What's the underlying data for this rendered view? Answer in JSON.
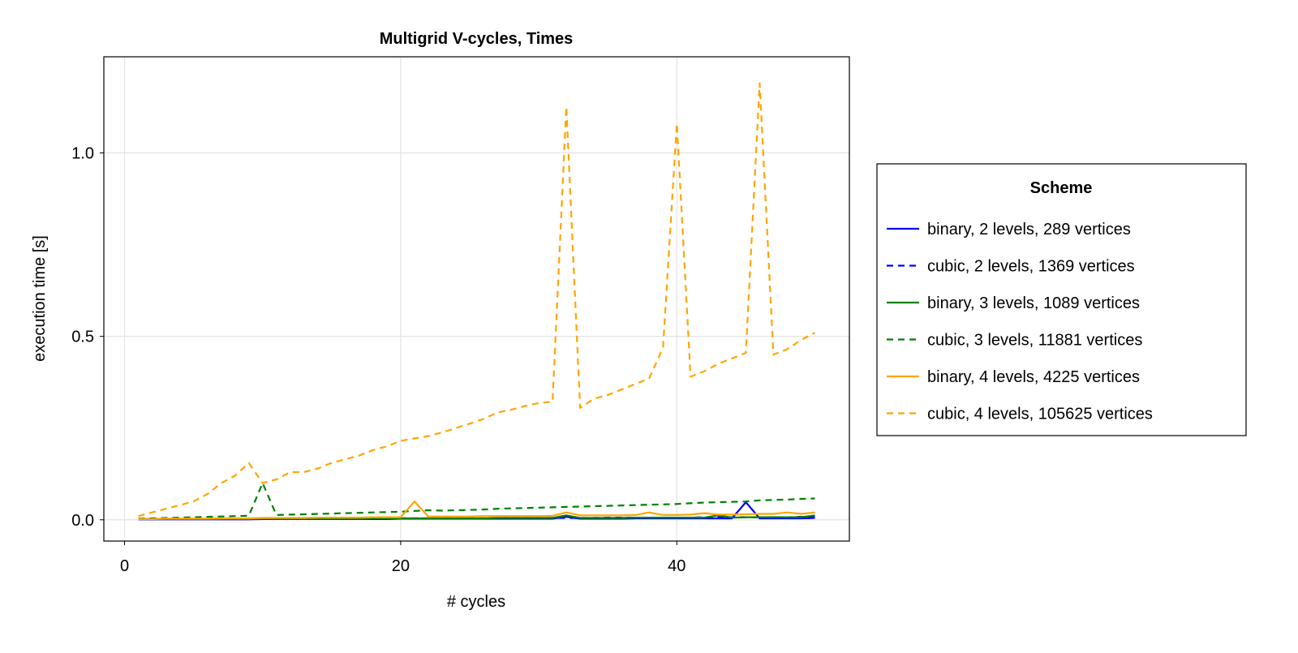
{
  "chart_data": {
    "type": "line",
    "title": "Multigrid V-cycles, Times",
    "xlabel": "# cycles",
    "ylabel": "execution time [s]",
    "xlim": [
      -1.5,
      52.5
    ],
    "ylim": [
      -0.058,
      1.262
    ],
    "xticks": [
      0,
      20,
      40
    ],
    "yticks": [
      0.0,
      0.5,
      1.0
    ],
    "xtick_labels": [
      "0",
      "20",
      "40"
    ],
    "ytick_labels": [
      "0.0",
      "0.5",
      "1.0"
    ],
    "grid": true,
    "legend": {
      "title": "Scheme",
      "placement": "right"
    },
    "x": [
      1,
      2,
      3,
      4,
      5,
      6,
      7,
      8,
      9,
      10,
      11,
      12,
      13,
      14,
      15,
      16,
      17,
      18,
      19,
      20,
      21,
      22,
      23,
      24,
      25,
      26,
      27,
      28,
      29,
      30,
      31,
      32,
      33,
      34,
      35,
      36,
      37,
      38,
      39,
      40,
      41,
      42,
      43,
      44,
      45,
      46,
      47,
      48,
      49,
      50
    ],
    "series": [
      {
        "name": "binary, 2 levels, 289 vertices",
        "color": "#0000ff",
        "dash": "solid",
        "values": [
          0.001,
          0.001,
          0.001,
          0.001,
          0.001,
          0.001,
          0.001,
          0.001,
          0.001,
          0.002,
          0.002,
          0.002,
          0.002,
          0.002,
          0.002,
          0.002,
          0.002,
          0.002,
          0.002,
          0.003,
          0.003,
          0.003,
          0.003,
          0.003,
          0.003,
          0.003,
          0.003,
          0.003,
          0.003,
          0.003,
          0.003,
          0.008,
          0.003,
          0.003,
          0.003,
          0.003,
          0.004,
          0.004,
          0.004,
          0.004,
          0.004,
          0.004,
          0.004,
          0.004,
          0.048,
          0.004,
          0.004,
          0.004,
          0.004,
          0.005
        ]
      },
      {
        "name": "cubic, 2 levels, 1369 vertices",
        "color": "#0000ff",
        "dash": "dashed",
        "values": [
          0.002,
          0.002,
          0.002,
          0.002,
          0.002,
          0.002,
          0.002,
          0.002,
          0.003,
          0.003,
          0.003,
          0.003,
          0.003,
          0.003,
          0.003,
          0.003,
          0.003,
          0.004,
          0.004,
          0.004,
          0.004,
          0.004,
          0.004,
          0.004,
          0.004,
          0.004,
          0.005,
          0.005,
          0.005,
          0.005,
          0.005,
          0.005,
          0.005,
          0.005,
          0.006,
          0.006,
          0.006,
          0.006,
          0.006,
          0.006,
          0.006,
          0.007,
          0.007,
          0.007,
          0.007,
          0.007,
          0.007,
          0.007,
          0.008,
          0.008
        ]
      },
      {
        "name": "binary, 3 levels, 1089 vertices",
        "color": "#008000",
        "dash": "solid",
        "values": [
          0.002,
          0.002,
          0.002,
          0.002,
          0.002,
          0.002,
          0.002,
          0.002,
          0.002,
          0.003,
          0.003,
          0.003,
          0.003,
          0.003,
          0.003,
          0.003,
          0.003,
          0.004,
          0.004,
          0.004,
          0.004,
          0.004,
          0.004,
          0.004,
          0.004,
          0.004,
          0.005,
          0.005,
          0.005,
          0.005,
          0.005,
          0.012,
          0.005,
          0.005,
          0.005,
          0.005,
          0.006,
          0.006,
          0.006,
          0.006,
          0.006,
          0.006,
          0.012,
          0.006,
          0.007,
          0.007,
          0.007,
          0.007,
          0.007,
          0.012
        ]
      },
      {
        "name": "cubic, 3 levels, 11881 vertices",
        "color": "#008000",
        "dash": "dashed",
        "values": [
          0.003,
          0.004,
          0.005,
          0.006,
          0.007,
          0.008,
          0.009,
          0.01,
          0.011,
          0.1,
          0.013,
          0.014,
          0.015,
          0.016,
          0.017,
          0.018,
          0.019,
          0.02,
          0.021,
          0.022,
          0.024,
          0.026,
          0.025,
          0.026,
          0.027,
          0.028,
          0.03,
          0.031,
          0.032,
          0.033,
          0.034,
          0.035,
          0.036,
          0.037,
          0.038,
          0.039,
          0.04,
          0.041,
          0.042,
          0.043,
          0.045,
          0.047,
          0.048,
          0.049,
          0.05,
          0.053,
          0.054,
          0.055,
          0.057,
          0.058
        ]
      },
      {
        "name": "binary, 4 levels, 4225 vertices",
        "color": "#ffa500",
        "dash": "solid",
        "values": [
          0.002,
          0.002,
          0.003,
          0.003,
          0.003,
          0.003,
          0.004,
          0.004,
          0.004,
          0.005,
          0.005,
          0.005,
          0.005,
          0.006,
          0.006,
          0.006,
          0.006,
          0.007,
          0.007,
          0.007,
          0.05,
          0.009,
          0.009,
          0.009,
          0.009,
          0.01,
          0.01,
          0.01,
          0.01,
          0.01,
          0.011,
          0.02,
          0.012,
          0.012,
          0.012,
          0.012,
          0.013,
          0.02,
          0.013,
          0.013,
          0.014,
          0.018,
          0.014,
          0.014,
          0.015,
          0.016,
          0.016,
          0.02,
          0.016,
          0.02
        ]
      },
      {
        "name": "cubic, 4 levels, 105625 vertices",
        "color": "#ffa500",
        "dash": "dashed",
        "values": [
          0.01,
          0.02,
          0.03,
          0.04,
          0.05,
          0.07,
          0.1,
          0.12,
          0.155,
          0.1,
          0.11,
          0.13,
          0.13,
          0.14,
          0.155,
          0.165,
          0.175,
          0.19,
          0.2,
          0.215,
          0.222,
          0.228,
          0.238,
          0.25,
          0.262,
          0.275,
          0.292,
          0.3,
          0.31,
          0.318,
          0.322,
          1.126,
          0.305,
          0.33,
          0.34,
          0.355,
          0.37,
          0.385,
          0.47,
          1.08,
          0.39,
          0.405,
          0.425,
          0.44,
          0.455,
          1.19,
          0.45,
          0.465,
          0.49,
          0.51
        ]
      }
    ]
  }
}
